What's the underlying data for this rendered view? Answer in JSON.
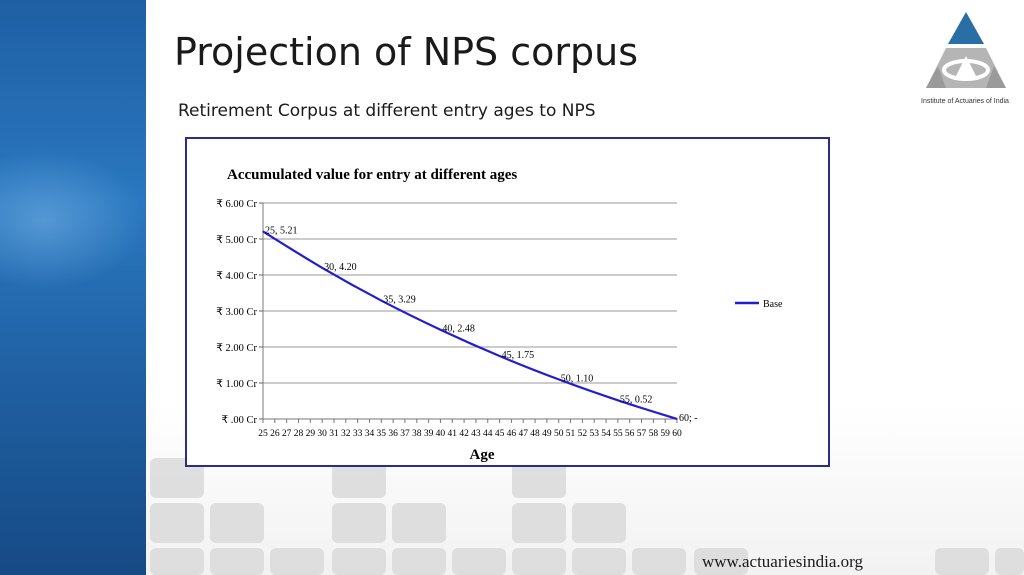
{
  "slide": {
    "title": "Projection of NPS corpus",
    "subtitle": "Retirement Corpus at different entry ages to NPS",
    "footer_url": "www.actuariesindia.org",
    "logo_caption": "Institute of Actuaries of India",
    "accent_color": "#1f5fa3",
    "logo_color": "#2a6ea6"
  },
  "chart_data": {
    "type": "line",
    "title": "Accumulated value for entry at different ages",
    "xlabel": "Age",
    "ylabel": "",
    "x": [
      25,
      26,
      27,
      28,
      29,
      30,
      31,
      32,
      33,
      34,
      35,
      36,
      37,
      38,
      39,
      40,
      41,
      42,
      43,
      44,
      45,
      46,
      47,
      48,
      49,
      50,
      51,
      52,
      53,
      54,
      55,
      56,
      57,
      58,
      59,
      60
    ],
    "ylim": [
      0,
      6
    ],
    "yticks": [
      0,
      1,
      2,
      3,
      4,
      5,
      6
    ],
    "ytick_labels": [
      "₹ .00 Cr",
      "₹ 1.00 Cr",
      "₹ 2.00 Cr",
      "₹ 3.00 Cr",
      "₹ 4.00 Cr",
      "₹ 5.00 Cr",
      "₹ 6.00 Cr"
    ],
    "grid": true,
    "legend_position": "right",
    "series": [
      {
        "name": "Base",
        "color": "#1f1fd1",
        "points": [
          {
            "x": 25,
            "y": 5.21
          },
          {
            "x": 30,
            "y": 4.2
          },
          {
            "x": 35,
            "y": 3.29
          },
          {
            "x": 40,
            "y": 2.48
          },
          {
            "x": 45,
            "y": 1.75
          },
          {
            "x": 50,
            "y": 1.1
          },
          {
            "x": 55,
            "y": 0.52
          },
          {
            "x": 60,
            "y": 0
          }
        ],
        "labels": [
          {
            "x": 25,
            "text": "25,  5.21"
          },
          {
            "x": 30,
            "text": "30,  4.20"
          },
          {
            "x": 35,
            "text": "35,  3.29"
          },
          {
            "x": 40,
            "text": "40,  2.48"
          },
          {
            "x": 45,
            "text": "45,  1.75"
          },
          {
            "x": 50,
            "text": "50,  1.10"
          },
          {
            "x": 55,
            "text": "55,  0.52"
          },
          {
            "x": 60,
            "text": "60;  -"
          }
        ]
      }
    ]
  }
}
